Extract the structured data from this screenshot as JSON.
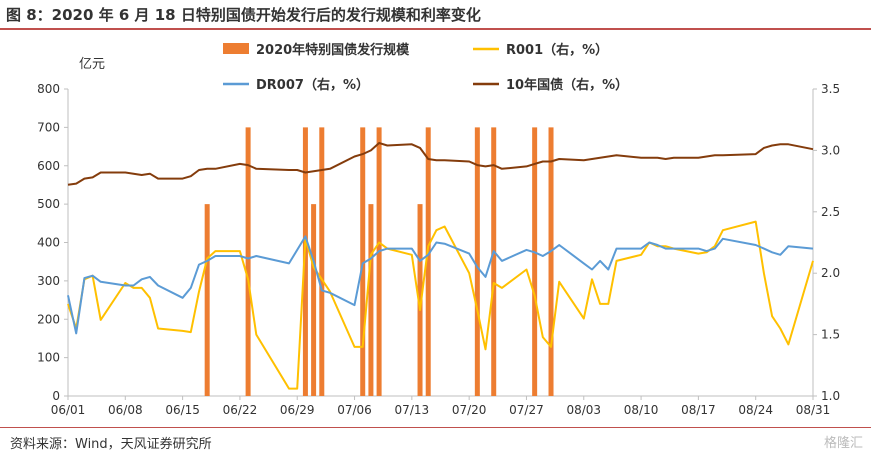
{
  "header": {
    "title": "图 8：2020 年 6 月 18 日特别国债开始发行后的发行规模和利率变化"
  },
  "footer": {
    "source": "资料来源：Wind，天风证券研究所",
    "watermark": "格隆汇"
  },
  "colors": {
    "issuance": "#ED7D31",
    "r001": "#FFC000",
    "dr007": "#5B9BD5",
    "bond10y": "#843C0C",
    "accent": "#c0504d"
  },
  "chart_data": {
    "type": "bar+line",
    "title": "",
    "ylabel_left": "亿元",
    "ylim_left": [
      0,
      800
    ],
    "yticks_left": [
      0,
      100,
      200,
      300,
      400,
      500,
      600,
      700,
      800
    ],
    "ylim_right": [
      1.0,
      3.5
    ],
    "yticks_right": [
      "1.0",
      "1.5",
      "2.0",
      "2.5",
      "3.0",
      "3.5"
    ],
    "x_start": "2020-06-01",
    "x_end": "2020-08-31",
    "xticks": [
      "06/01",
      "06/08",
      "06/15",
      "06/22",
      "06/29",
      "07/06",
      "07/13",
      "07/20",
      "07/27",
      "08/03",
      "08/10",
      "08/17",
      "08/24",
      "08/31"
    ],
    "legend": [
      "2020年特别国债发行规模",
      "R001（右，%）",
      "DR007（右，%）",
      "10年国债（右，%）"
    ],
    "grid": false,
    "bars": {
      "name": "2020年特别国债发行规模",
      "axis": "left",
      "points": [
        {
          "date": "2020-06-18",
          "value": 500
        },
        {
          "date": "2020-06-23",
          "value": 700
        },
        {
          "date": "2020-06-30",
          "value": 700
        },
        {
          "date": "2020-07-01",
          "value": 500
        },
        {
          "date": "2020-07-02",
          "value": 700
        },
        {
          "date": "2020-07-07",
          "value": 700
        },
        {
          "date": "2020-07-08",
          "value": 500
        },
        {
          "date": "2020-07-09",
          "value": 700
        },
        {
          "date": "2020-07-14",
          "value": 500
        },
        {
          "date": "2020-07-15",
          "value": 700
        },
        {
          "date": "2020-07-21",
          "value": 700
        },
        {
          "date": "2020-07-23",
          "value": 700
        },
        {
          "date": "2020-07-28",
          "value": 700
        },
        {
          "date": "2020-07-30",
          "value": 700
        }
      ]
    },
    "series": [
      {
        "name": "R001（右，%）",
        "axis": "right",
        "points": [
          {
            "date": "2020-06-01",
            "value": 1.75
          },
          {
            "date": "2020-06-02",
            "value": 1.55
          },
          {
            "date": "2020-06-03",
            "value": 1.95
          },
          {
            "date": "2020-06-04",
            "value": 1.98
          },
          {
            "date": "2020-06-05",
            "value": 1.62
          },
          {
            "date": "2020-06-08",
            "value": 1.92
          },
          {
            "date": "2020-06-09",
            "value": 1.88
          },
          {
            "date": "2020-06-10",
            "value": 1.88
          },
          {
            "date": "2020-06-11",
            "value": 1.8
          },
          {
            "date": "2020-06-12",
            "value": 1.55
          },
          {
            "date": "2020-06-15",
            "value": 1.53
          },
          {
            "date": "2020-06-16",
            "value": 1.52
          },
          {
            "date": "2020-06-17",
            "value": 1.85
          },
          {
            "date": "2020-06-18",
            "value": 2.12
          },
          {
            "date": "2020-06-19",
            "value": 2.18
          },
          {
            "date": "2020-06-22",
            "value": 2.18
          },
          {
            "date": "2020-06-23",
            "value": 1.95
          },
          {
            "date": "2020-06-24",
            "value": 1.5
          },
          {
            "date": "2020-06-28",
            "value": 1.06
          },
          {
            "date": "2020-06-29",
            "value": 1.06
          },
          {
            "date": "2020-06-30",
            "value": 2.28
          },
          {
            "date": "2020-07-01",
            "value": 2.05
          },
          {
            "date": "2020-07-02",
            "value": 1.95
          },
          {
            "date": "2020-07-03",
            "value": 1.85
          },
          {
            "date": "2020-07-06",
            "value": 1.4
          },
          {
            "date": "2020-07-07",
            "value": 1.4
          },
          {
            "date": "2020-07-08",
            "value": 2.15
          },
          {
            "date": "2020-07-09",
            "value": 2.25
          },
          {
            "date": "2020-07-10",
            "value": 2.2
          },
          {
            "date": "2020-07-13",
            "value": 2.15
          },
          {
            "date": "2020-07-14",
            "value": 1.7
          },
          {
            "date": "2020-07-15",
            "value": 2.22
          },
          {
            "date": "2020-07-16",
            "value": 2.35
          },
          {
            "date": "2020-07-17",
            "value": 2.38
          },
          {
            "date": "2020-07-20",
            "value": 2.0
          },
          {
            "date": "2020-07-21",
            "value": 1.7
          },
          {
            "date": "2020-07-22",
            "value": 1.38
          },
          {
            "date": "2020-07-23",
            "value": 1.92
          },
          {
            "date": "2020-07-24",
            "value": 1.88
          },
          {
            "date": "2020-07-27",
            "value": 2.03
          },
          {
            "date": "2020-07-28",
            "value": 1.82
          },
          {
            "date": "2020-07-29",
            "value": 1.48
          },
          {
            "date": "2020-07-30",
            "value": 1.4
          },
          {
            "date": "2020-07-31",
            "value": 1.93
          },
          {
            "date": "2020-08-03",
            "value": 1.63
          },
          {
            "date": "2020-08-04",
            "value": 1.95
          },
          {
            "date": "2020-08-05",
            "value": 1.75
          },
          {
            "date": "2020-08-06",
            "value": 1.75
          },
          {
            "date": "2020-08-07",
            "value": 2.1
          },
          {
            "date": "2020-08-10",
            "value": 2.15
          },
          {
            "date": "2020-08-11",
            "value": 2.25
          },
          {
            "date": "2020-08-12",
            "value": 2.22
          },
          {
            "date": "2020-08-13",
            "value": 2.22
          },
          {
            "date": "2020-08-14",
            "value": 2.2
          },
          {
            "date": "2020-08-17",
            "value": 2.16
          },
          {
            "date": "2020-08-18",
            "value": 2.17
          },
          {
            "date": "2020-08-19",
            "value": 2.22
          },
          {
            "date": "2020-08-20",
            "value": 2.35
          },
          {
            "date": "2020-08-24",
            "value": 2.42
          },
          {
            "date": "2020-08-25",
            "value": 2.0
          },
          {
            "date": "2020-08-26",
            "value": 1.65
          },
          {
            "date": "2020-08-27",
            "value": 1.55
          },
          {
            "date": "2020-08-28",
            "value": 1.42
          },
          {
            "date": "2020-08-31",
            "value": 2.1
          }
        ]
      },
      {
        "name": "DR007（右，%）",
        "axis": "right",
        "points": [
          {
            "date": "2020-06-01",
            "value": 1.82
          },
          {
            "date": "2020-06-02",
            "value": 1.51
          },
          {
            "date": "2020-06-03",
            "value": 1.96
          },
          {
            "date": "2020-06-04",
            "value": 1.98
          },
          {
            "date": "2020-06-05",
            "value": 1.93
          },
          {
            "date": "2020-06-08",
            "value": 1.9
          },
          {
            "date": "2020-06-09",
            "value": 1.9
          },
          {
            "date": "2020-06-10",
            "value": 1.95
          },
          {
            "date": "2020-06-11",
            "value": 1.97
          },
          {
            "date": "2020-06-12",
            "value": 1.9
          },
          {
            "date": "2020-06-15",
            "value": 1.8
          },
          {
            "date": "2020-06-16",
            "value": 1.88
          },
          {
            "date": "2020-06-17",
            "value": 2.07
          },
          {
            "date": "2020-06-18",
            "value": 2.1
          },
          {
            "date": "2020-06-19",
            "value": 2.14
          },
          {
            "date": "2020-06-22",
            "value": 2.14
          },
          {
            "date": "2020-06-23",
            "value": 2.12
          },
          {
            "date": "2020-06-24",
            "value": 2.14
          },
          {
            "date": "2020-06-28",
            "value": 2.08
          },
          {
            "date": "2020-06-30",
            "value": 2.3
          },
          {
            "date": "2020-07-01",
            "value": 2.1
          },
          {
            "date": "2020-07-02",
            "value": 1.86
          },
          {
            "date": "2020-07-03",
            "value": 1.84
          },
          {
            "date": "2020-07-06",
            "value": 1.74
          },
          {
            "date": "2020-07-07",
            "value": 2.08
          },
          {
            "date": "2020-07-08",
            "value": 2.12
          },
          {
            "date": "2020-07-09",
            "value": 2.18
          },
          {
            "date": "2020-07-10",
            "value": 2.2
          },
          {
            "date": "2020-07-13",
            "value": 2.2
          },
          {
            "date": "2020-07-14",
            "value": 2.1
          },
          {
            "date": "2020-07-15",
            "value": 2.15
          },
          {
            "date": "2020-07-16",
            "value": 2.25
          },
          {
            "date": "2020-07-17",
            "value": 2.24
          },
          {
            "date": "2020-07-20",
            "value": 2.16
          },
          {
            "date": "2020-07-21",
            "value": 2.05
          },
          {
            "date": "2020-07-22",
            "value": 1.97
          },
          {
            "date": "2020-07-23",
            "value": 2.18
          },
          {
            "date": "2020-07-24",
            "value": 2.1
          },
          {
            "date": "2020-07-27",
            "value": 2.19
          },
          {
            "date": "2020-07-28",
            "value": 2.17
          },
          {
            "date": "2020-07-29",
            "value": 2.14
          },
          {
            "date": "2020-07-30",
            "value": 2.18
          },
          {
            "date": "2020-07-31",
            "value": 2.23
          },
          {
            "date": "2020-08-03",
            "value": 2.08
          },
          {
            "date": "2020-08-04",
            "value": 2.03
          },
          {
            "date": "2020-08-05",
            "value": 2.1
          },
          {
            "date": "2020-08-06",
            "value": 2.03
          },
          {
            "date": "2020-08-07",
            "value": 2.2
          },
          {
            "date": "2020-08-10",
            "value": 2.2
          },
          {
            "date": "2020-08-11",
            "value": 2.25
          },
          {
            "date": "2020-08-12",
            "value": 2.23
          },
          {
            "date": "2020-08-13",
            "value": 2.2
          },
          {
            "date": "2020-08-14",
            "value": 2.2
          },
          {
            "date": "2020-08-17",
            "value": 2.2
          },
          {
            "date": "2020-08-18",
            "value": 2.18
          },
          {
            "date": "2020-08-19",
            "value": 2.2
          },
          {
            "date": "2020-08-20",
            "value": 2.28
          },
          {
            "date": "2020-08-24",
            "value": 2.23
          },
          {
            "date": "2020-08-25",
            "value": 2.2
          },
          {
            "date": "2020-08-26",
            "value": 2.17
          },
          {
            "date": "2020-08-27",
            "value": 2.15
          },
          {
            "date": "2020-08-28",
            "value": 2.22
          },
          {
            "date": "2020-08-31",
            "value": 2.2
          }
        ]
      },
      {
        "name": "10年国债（右，%）",
        "axis": "right",
        "points": [
          {
            "date": "2020-06-01",
            "value": 2.72
          },
          {
            "date": "2020-06-02",
            "value": 2.73
          },
          {
            "date": "2020-06-03",
            "value": 2.77
          },
          {
            "date": "2020-06-04",
            "value": 2.78
          },
          {
            "date": "2020-06-05",
            "value": 2.82
          },
          {
            "date": "2020-06-08",
            "value": 2.82
          },
          {
            "date": "2020-06-09",
            "value": 2.81
          },
          {
            "date": "2020-06-10",
            "value": 2.8
          },
          {
            "date": "2020-06-11",
            "value": 2.81
          },
          {
            "date": "2020-06-12",
            "value": 2.77
          },
          {
            "date": "2020-06-15",
            "value": 2.77
          },
          {
            "date": "2020-06-16",
            "value": 2.79
          },
          {
            "date": "2020-06-17",
            "value": 2.84
          },
          {
            "date": "2020-06-18",
            "value": 2.85
          },
          {
            "date": "2020-06-19",
            "value": 2.85
          },
          {
            "date": "2020-06-22",
            "value": 2.89
          },
          {
            "date": "2020-06-23",
            "value": 2.88
          },
          {
            "date": "2020-06-24",
            "value": 2.85
          },
          {
            "date": "2020-06-28",
            "value": 2.84
          },
          {
            "date": "2020-06-29",
            "value": 2.84
          },
          {
            "date": "2020-06-30",
            "value": 2.82
          },
          {
            "date": "2020-07-01",
            "value": 2.83
          },
          {
            "date": "2020-07-02",
            "value": 2.84
          },
          {
            "date": "2020-07-03",
            "value": 2.85
          },
          {
            "date": "2020-07-06",
            "value": 2.95
          },
          {
            "date": "2020-07-07",
            "value": 2.97
          },
          {
            "date": "2020-07-08",
            "value": 3.0
          },
          {
            "date": "2020-07-09",
            "value": 3.06
          },
          {
            "date": "2020-07-10",
            "value": 3.04
          },
          {
            "date": "2020-07-13",
            "value": 3.05
          },
          {
            "date": "2020-07-14",
            "value": 3.02
          },
          {
            "date": "2020-07-15",
            "value": 2.93
          },
          {
            "date": "2020-07-16",
            "value": 2.92
          },
          {
            "date": "2020-07-17",
            "value": 2.92
          },
          {
            "date": "2020-07-20",
            "value": 2.91
          },
          {
            "date": "2020-07-21",
            "value": 2.88
          },
          {
            "date": "2020-07-22",
            "value": 2.87
          },
          {
            "date": "2020-07-23",
            "value": 2.88
          },
          {
            "date": "2020-07-24",
            "value": 2.85
          },
          {
            "date": "2020-07-27",
            "value": 2.87
          },
          {
            "date": "2020-07-28",
            "value": 2.89
          },
          {
            "date": "2020-07-29",
            "value": 2.91
          },
          {
            "date": "2020-07-30",
            "value": 2.91
          },
          {
            "date": "2020-07-31",
            "value": 2.93
          },
          {
            "date": "2020-08-03",
            "value": 2.92
          },
          {
            "date": "2020-08-04",
            "value": 2.93
          },
          {
            "date": "2020-08-05",
            "value": 2.94
          },
          {
            "date": "2020-08-06",
            "value": 2.95
          },
          {
            "date": "2020-08-07",
            "value": 2.96
          },
          {
            "date": "2020-08-10",
            "value": 2.94
          },
          {
            "date": "2020-08-11",
            "value": 2.94
          },
          {
            "date": "2020-08-12",
            "value": 2.94
          },
          {
            "date": "2020-08-13",
            "value": 2.93
          },
          {
            "date": "2020-08-14",
            "value": 2.94
          },
          {
            "date": "2020-08-17",
            "value": 2.94
          },
          {
            "date": "2020-08-18",
            "value": 2.95
          },
          {
            "date": "2020-08-19",
            "value": 2.96
          },
          {
            "date": "2020-08-20",
            "value": 2.96
          },
          {
            "date": "2020-08-24",
            "value": 2.97
          },
          {
            "date": "2020-08-25",
            "value": 3.02
          },
          {
            "date": "2020-08-26",
            "value": 3.04
          },
          {
            "date": "2020-08-27",
            "value": 3.05
          },
          {
            "date": "2020-08-28",
            "value": 3.05
          },
          {
            "date": "2020-08-31",
            "value": 3.01
          }
        ]
      }
    ]
  }
}
